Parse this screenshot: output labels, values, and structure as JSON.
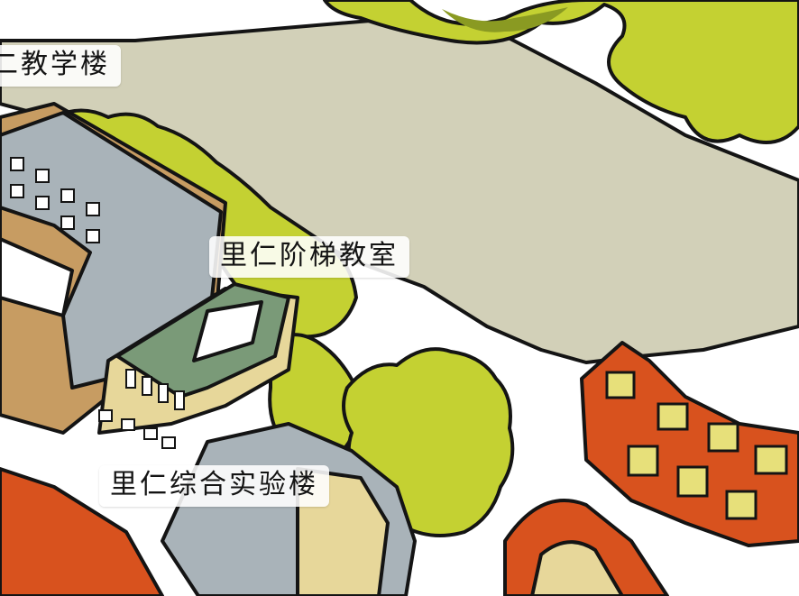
{
  "map": {
    "labels": [
      {
        "text": "二教学楼"
      },
      {
        "text": "里仁阶梯教室"
      },
      {
        "text": "里仁综合实验楼"
      }
    ]
  },
  "colors": {
    "road": "#d2d0b8",
    "tree": "#c4d132",
    "brick": "#d8521e",
    "tan": "#c79c62",
    "roof": "#a9b3b9",
    "green_roof": "#7a9a78"
  }
}
